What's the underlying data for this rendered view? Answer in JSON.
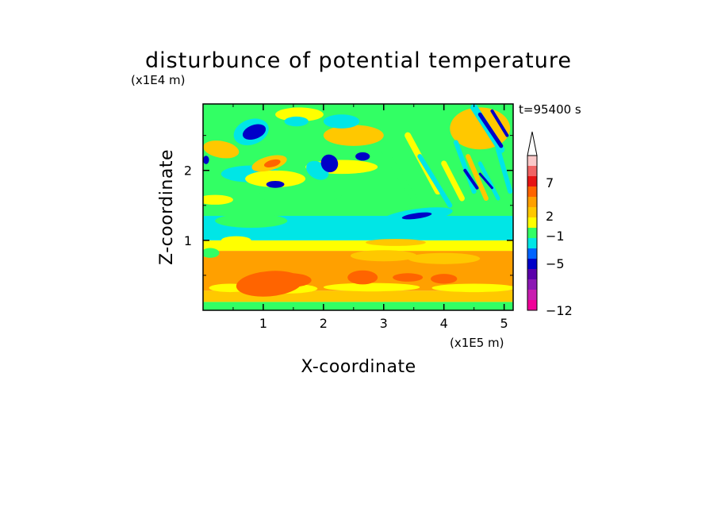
{
  "chart_data": {
    "type": "heatmap",
    "title": "disturbunce of potential temperature",
    "y_scale_label": "(x1E4 m)",
    "x_scale_label": "(x1E5 m)",
    "time_label": "t=95400 s",
    "xlabel": "X-coordinate",
    "ylabel": "Z-coordinate",
    "x_ticks": [
      "1",
      "2",
      "3",
      "4",
      "5"
    ],
    "y_ticks": [
      "1",
      "2"
    ],
    "xlim": [
      0,
      5.15
    ],
    "ylim": [
      0,
      2.95
    ],
    "colorbar": {
      "tick_labels": [
        "7",
        "2",
        "−1",
        "−5",
        "−12"
      ],
      "extend": "max",
      "colors": [
        "#f00098",
        "#c81eb0",
        "#8c19b4",
        "#5a00aa",
        "#0000c8",
        "#0064ff",
        "#00e6e6",
        "#32ff64",
        "#ffff00",
        "#ffc800",
        "#ffa000",
        "#ff6400",
        "#e61414",
        "#f06464",
        "#fac8c8"
      ]
    },
    "regions": [
      {
        "z": [
          0,
          0.12
        ],
        "value": 0
      },
      {
        "z": [
          0.12,
          0.28
        ],
        "value": 2
      },
      {
        "z": [
          0.28,
          0.85
        ],
        "value": 3
      },
      {
        "z": [
          0.85,
          1.0
        ],
        "value": 1
      },
      {
        "z": [
          1.0,
          1.35
        ],
        "value": -0.5
      },
      {
        "z": [
          1.35,
          2.95
        ],
        "value": 0.5
      }
    ]
  }
}
